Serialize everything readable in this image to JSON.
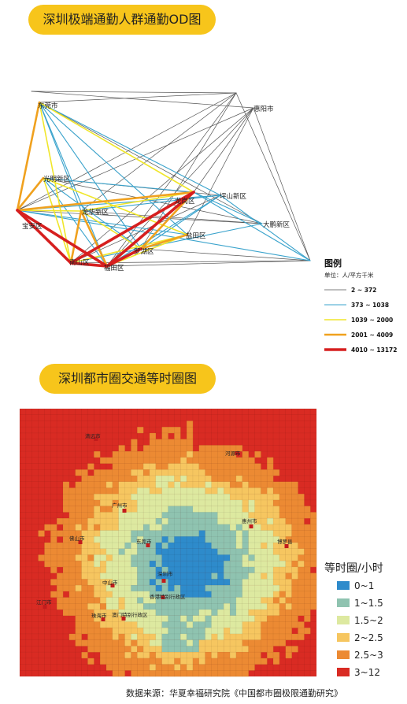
{
  "title_od": "深圳极端通勤人群通勤OD图",
  "title_iso": "深圳都市圈交通等时圈图",
  "od_map": {
    "places": [
      {
        "name": "东莞市",
        "id": "dongguan"
      },
      {
        "name": "惠阳市",
        "id": "huiyang"
      },
      {
        "name": "光明新区",
        "id": "guangming"
      },
      {
        "name": "坪山新区",
        "id": "pingshan"
      },
      {
        "name": "龙华新区",
        "id": "longhua"
      },
      {
        "name": "龙岗区",
        "id": "longgang"
      },
      {
        "name": "宝安区",
        "id": "baoan"
      },
      {
        "name": "大鹏新区",
        "id": "dapeng"
      },
      {
        "name": "盐田区",
        "id": "yantian"
      },
      {
        "name": "罗湖区",
        "id": "luohu"
      },
      {
        "name": "南山区",
        "id": "nanshan"
      },
      {
        "name": "福田区",
        "id": "futian"
      }
    ],
    "legend": {
      "title": "图例",
      "unit": "单位：人/平方千米",
      "items": [
        {
          "label": "2 ~ 372",
          "color": "#555555"
        },
        {
          "label": "373 ~ 1038",
          "color": "#3aa3cc"
        },
        {
          "label": "1039 ~ 2000",
          "color": "#f0e62a"
        },
        {
          "label": "2001 ~ 4009",
          "color": "#f0a11e"
        },
        {
          "label": "4010 ~ 13172",
          "color": "#d61f1f"
        }
      ]
    }
  },
  "iso_map": {
    "places": [
      "清远市",
      "河源市",
      "广州市",
      "惠州市",
      "东莞市",
      "佛山市",
      "博罗县",
      "中山市",
      "深圳市",
      "江门市",
      "香港特别行政区",
      "珠海市",
      "澳门特别行政区"
    ],
    "legend": {
      "title": "等时圈/小时",
      "items": [
        {
          "label": "0~1",
          "color": "#2e8bcb"
        },
        {
          "label": "1~1.5",
          "color": "#8fc3b0"
        },
        {
          "label": "1.5~2",
          "color": "#dde9a0"
        },
        {
          "label": "2~2.5",
          "color": "#f6c660"
        },
        {
          "label": "2.5~3",
          "color": "#ec8a33"
        },
        {
          "label": "3~12",
          "color": "#d92b23"
        }
      ]
    }
  },
  "source": "数据来源：华夏幸福研究院《中国都市圈极限通勤研究》"
}
